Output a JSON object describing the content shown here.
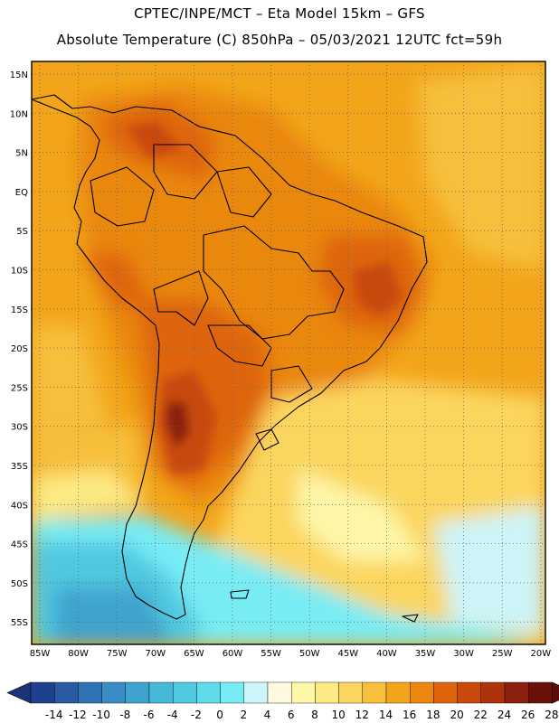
{
  "header": {
    "line1": "CPTEC/INPE/MCT –  Eta Model 15km – GFS",
    "line2": "Absolute Temperature (C) 850hPa – 05/03/2021 12UTC fct=59h"
  },
  "map": {
    "lat_labels": [
      "15N",
      "10N",
      "5N",
      "EQ",
      "5S",
      "10S",
      "15S",
      "20S",
      "25S",
      "30S",
      "35S",
      "40S",
      "45S",
      "50S",
      "55S"
    ],
    "lon_labels": [
      "85W",
      "80W",
      "75W",
      "70W",
      "65W",
      "60W",
      "55W",
      "50W",
      "45W",
      "40W",
      "35W",
      "30W",
      "25W",
      "20W"
    ],
    "grid": "dotted"
  },
  "colorbar": {
    "labels": [
      "-14",
      "-12",
      "-10",
      "-8",
      "-6",
      "-4",
      "-2",
      "0",
      "2",
      "4",
      "6",
      "8",
      "10",
      "12",
      "14",
      "16",
      "18",
      "20",
      "22",
      "24",
      "26",
      "28"
    ],
    "colors": [
      "#1f3f8f",
      "#2a5aa3",
      "#2f73b4",
      "#3a8cc4",
      "#3fa3cf",
      "#46b8d8",
      "#4fc9e0",
      "#5fdcec",
      "#78ecf5",
      "#cdf4f8",
      "#fff9e2",
      "#fef7a8",
      "#fdea83",
      "#fbd65e",
      "#f7bf3b",
      "#f2a51b",
      "#ea8710",
      "#de650c",
      "#c9480b",
      "#ae320c",
      "#8a200d",
      "#6c1109"
    ],
    "under_color": "#1b3478",
    "over_color": "#5c0c0c"
  }
}
